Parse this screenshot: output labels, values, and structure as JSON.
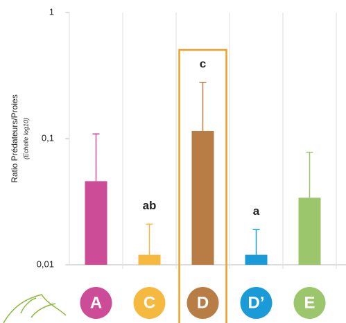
{
  "chart_data": {
    "type": "bar",
    "y_label": "Ratio Prédateurs/Proies",
    "y_sublabel": "(Echelle log10)",
    "categories": [
      "A",
      "C",
      "D",
      "D’",
      "E"
    ],
    "values": [
      0.046,
      0.012,
      0.115,
      0.012,
      0.034
    ],
    "errors": [
      0.063,
      0.009,
      0.164,
      0.007,
      0.044
    ],
    "colors": [
      "#cc4c97",
      "#f5b93f",
      "#b87d44",
      "#1a9ad6",
      "#9cc66b"
    ],
    "significance": [
      null,
      "ab",
      "c",
      "a",
      null
    ],
    "log_scale": true,
    "ylim": [
      0.01,
      1
    ],
    "yticks": [
      {
        "value": 0.01,
        "label": "0,01"
      },
      {
        "value": 0.1,
        "label": "0,1"
      },
      1
    ],
    "highlight": "D"
  }
}
